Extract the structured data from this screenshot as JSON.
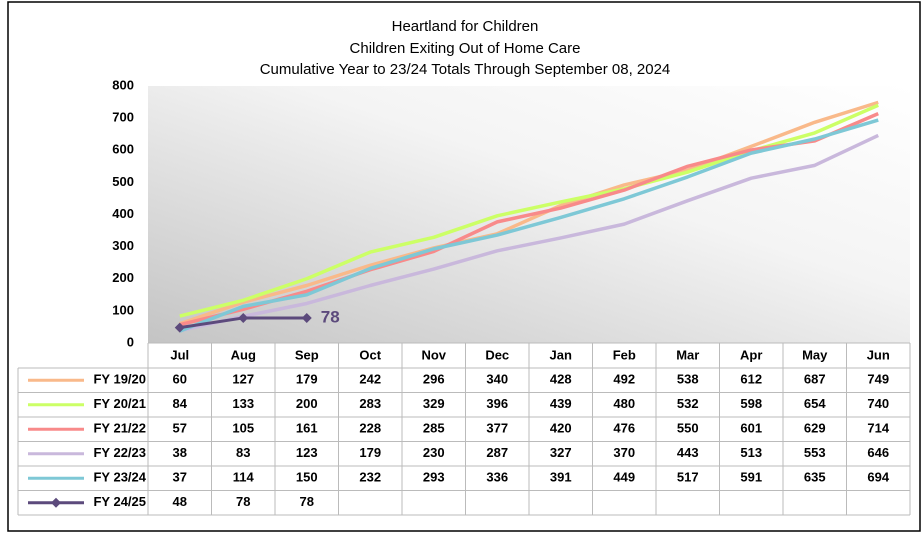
{
  "chart_data": {
    "type": "line",
    "title": "Heartland for Children",
    "subtitle": [
      "Children Exiting Out of Home Care",
      "Cumulative Year to 23/24 Totals Through September 08, 2024"
    ],
    "categories": [
      "Jul",
      "Aug",
      "Sep",
      "Oct",
      "Nov",
      "Dec",
      "Jan",
      "Feb",
      "Mar",
      "Apr",
      "May",
      "Jun"
    ],
    "ylim": [
      0,
      800
    ],
    "yticks": [
      0,
      100,
      200,
      300,
      400,
      500,
      600,
      700,
      800
    ],
    "series": [
      {
        "name": "FY 19/20",
        "color": "#f9b98a",
        "values": [
          60,
          127,
          179,
          242,
          296,
          340,
          428,
          492,
          538,
          612,
          687,
          749
        ]
      },
      {
        "name": "FY 20/21",
        "color": "#ccff66",
        "values": [
          84,
          133,
          200,
          283,
          329,
          396,
          439,
          480,
          532,
          598,
          654,
          740
        ]
      },
      {
        "name": "FY 21/22",
        "color": "#f88a8a",
        "values": [
          57,
          105,
          161,
          228,
          285,
          377,
          420,
          476,
          550,
          601,
          629,
          714
        ]
      },
      {
        "name": "FY 22/23",
        "color": "#c9b8dc",
        "values": [
          38,
          83,
          123,
          179,
          230,
          287,
          327,
          370,
          443,
          513,
          553,
          646
        ]
      },
      {
        "name": "FY 23/24",
        "color": "#7ec8d6",
        "values": [
          37,
          114,
          150,
          232,
          293,
          336,
          391,
          449,
          517,
          591,
          635,
          694
        ]
      },
      {
        "name": "FY 24/25",
        "color": "#5c4a7c",
        "marker": "diamond",
        "values": [
          48,
          78,
          78,
          null,
          null,
          null,
          null,
          null,
          null,
          null,
          null,
          null
        ]
      }
    ]
  }
}
